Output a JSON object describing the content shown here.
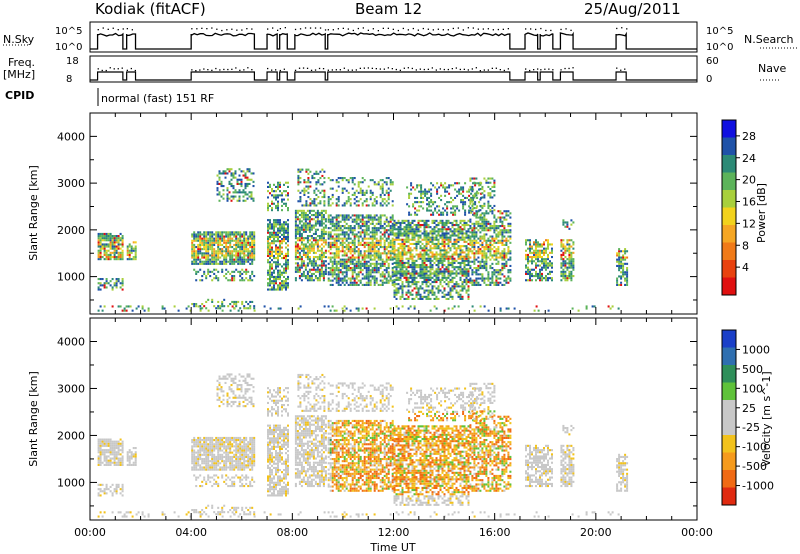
{
  "header": {
    "station": "Kodiak (fitACF)",
    "beam": "Beam 12",
    "date": "25/Aug/2011"
  },
  "chart_data": [
    {
      "type": "line",
      "label_left": "N.Sky",
      "label_right": "N.Search",
      "left_ticks": [
        "10^5",
        "10^0"
      ],
      "right_ticks": [
        "10^5",
        "10^0"
      ]
    },
    {
      "type": "line",
      "label_left_top": "Freq.",
      "label_left_bottom": "[MHz]",
      "label_right": "Nave",
      "left_ticks": [
        "18",
        "8"
      ],
      "right_ticks": [
        "60",
        "0"
      ]
    },
    {
      "type": "table",
      "label": "CPID",
      "value": "normal (fast) 151 RF"
    },
    {
      "type": "heatmap",
      "ylabel": "Slant Range [km]",
      "yticks": [
        "4000",
        "3000",
        "2000",
        "1000"
      ],
      "ylim": [
        200,
        4500
      ],
      "colorbar_label": "Power [dB]",
      "colorbar_ticks": [
        "28",
        "24",
        "20",
        "16",
        "12",
        "8",
        "4"
      ],
      "colors": [
        "#1010e0",
        "#1f52a8",
        "#2c8a76",
        "#5cb35a",
        "#a8cf3c",
        "#f2d21c",
        "#f5a623",
        "#f07a18",
        "#e8420f",
        "#e01010"
      ]
    },
    {
      "type": "heatmap",
      "ylabel": "Slant Range [km]",
      "yticks": [
        "4000",
        "3000",
        "2000",
        "1000"
      ],
      "ylim": [
        200,
        4500
      ],
      "colorbar_label": "Velocity [m s^-1]",
      "colorbar_ticks": [
        "1000",
        "500",
        "100",
        "25",
        "-25",
        "-100",
        "-500",
        "-1000"
      ],
      "colors": [
        "#1a3fc8",
        "#2f6fb0",
        "#2f8f5a",
        "#5fc23a",
        "#c8c8c8",
        "#c8c8c8",
        "#f2c21c",
        "#f59a1c",
        "#f06a14",
        "#e02a10"
      ],
      "xlabel": "Time UT",
      "xticks": [
        "00:00",
        "04:00",
        "08:00",
        "12:00",
        "16:00",
        "20:00",
        "00:00"
      ]
    }
  ]
}
